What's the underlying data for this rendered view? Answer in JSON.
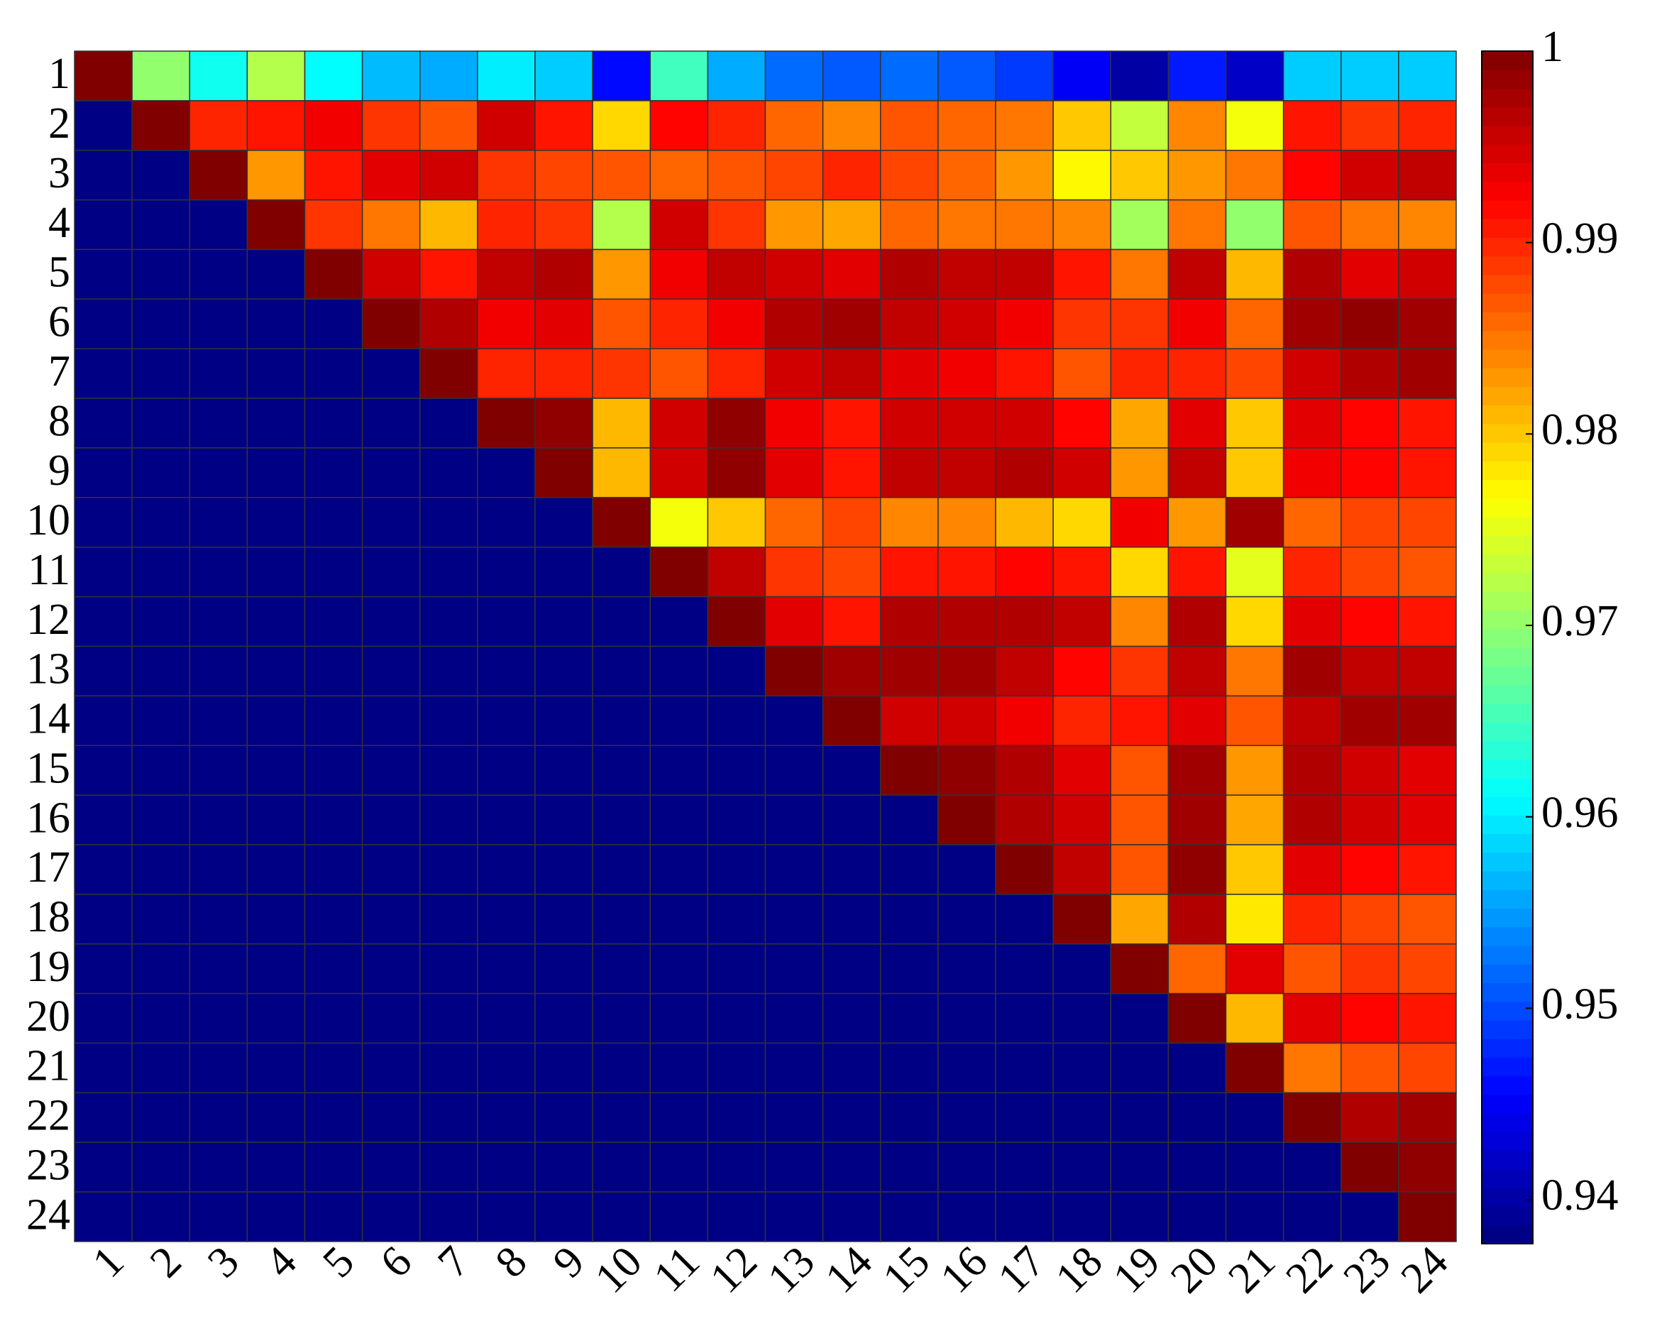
{
  "chart_data": {
    "type": "heatmap",
    "colormap": "jet",
    "xcategories": [
      "1",
      "2",
      "3",
      "4",
      "5",
      "6",
      "7",
      "8",
      "9",
      "10",
      "11",
      "12",
      "13",
      "14",
      "15",
      "16",
      "17",
      "18",
      "19",
      "20",
      "21",
      "22",
      "23",
      "24"
    ],
    "ycategories": [
      "1",
      "2",
      "3",
      "4",
      "5",
      "6",
      "7",
      "8",
      "9",
      "10",
      "11",
      "12",
      "13",
      "14",
      "15",
      "16",
      "17",
      "18",
      "19",
      "20",
      "21",
      "22",
      "23",
      "24"
    ],
    "values": [
      [
        1,
        0.97,
        0.962,
        0.972,
        0.961,
        0.957,
        0.956,
        0.96,
        0.958,
        0.946,
        0.965,
        0.956,
        0.952,
        0.951,
        0.952,
        0.951,
        0.949,
        0.945,
        0.94,
        0.947,
        0.942,
        0.958,
        0.958,
        0.958
      ],
      [
        0.938,
        1,
        0.99,
        0.991,
        0.993,
        0.989,
        0.987,
        0.995,
        0.991,
        0.979,
        0.992,
        0.99,
        0.986,
        0.984,
        0.987,
        0.986,
        0.985,
        0.98,
        0.973,
        0.984,
        0.976,
        0.991,
        0.989,
        0.99
      ],
      [
        0.938,
        0.938,
        1,
        0.983,
        0.991,
        0.994,
        0.995,
        0.989,
        0.988,
        0.987,
        0.986,
        0.987,
        0.988,
        0.99,
        0.988,
        0.986,
        0.983,
        0.977,
        0.98,
        0.983,
        0.985,
        0.992,
        0.995,
        0.996
      ],
      [
        0.938,
        0.938,
        0.938,
        1,
        0.989,
        0.985,
        0.981,
        0.99,
        0.989,
        0.972,
        0.995,
        0.989,
        0.983,
        0.982,
        0.986,
        0.985,
        0.985,
        0.984,
        0.971,
        0.985,
        0.97,
        0.987,
        0.985,
        0.984
      ],
      [
        0.938,
        0.938,
        0.938,
        0.938,
        1,
        0.995,
        0.991,
        0.996,
        0.997,
        0.983,
        0.993,
        0.996,
        0.995,
        0.994,
        0.997,
        0.996,
        0.996,
        0.991,
        0.985,
        0.996,
        0.981,
        0.997,
        0.994,
        0.995
      ],
      [
        0.938,
        0.938,
        0.938,
        0.938,
        0.938,
        1,
        0.997,
        0.993,
        0.994,
        0.987,
        0.99,
        0.993,
        0.997,
        0.998,
        0.996,
        0.995,
        0.993,
        0.989,
        0.989,
        0.993,
        0.986,
        0.998,
        0.999,
        0.998
      ],
      [
        0.938,
        0.938,
        0.938,
        0.938,
        0.938,
        0.938,
        1,
        0.99,
        0.99,
        0.989,
        0.987,
        0.99,
        0.995,
        0.996,
        0.994,
        0.993,
        0.991,
        0.987,
        0.99,
        0.99,
        0.988,
        0.995,
        0.997,
        0.998
      ],
      [
        0.938,
        0.938,
        0.938,
        0.938,
        0.938,
        0.938,
        0.938,
        1,
        0.999,
        0.981,
        0.995,
        0.999,
        0.993,
        0.991,
        0.995,
        0.995,
        0.995,
        0.992,
        0.982,
        0.994,
        0.98,
        0.994,
        0.992,
        0.991
      ],
      [
        0.938,
        0.938,
        0.938,
        0.938,
        0.938,
        0.938,
        0.938,
        0.938,
        1,
        0.981,
        0.995,
        0.999,
        0.994,
        0.991,
        0.996,
        0.996,
        0.997,
        0.995,
        0.983,
        0.996,
        0.98,
        0.993,
        0.992,
        0.991
      ],
      [
        0.938,
        0.938,
        0.938,
        0.938,
        0.938,
        0.938,
        0.938,
        0.938,
        0.938,
        1,
        0.976,
        0.98,
        0.986,
        0.988,
        0.984,
        0.984,
        0.981,
        0.979,
        0.993,
        0.983,
        0.998,
        0.986,
        0.988,
        0.988
      ],
      [
        0.938,
        0.938,
        0.938,
        0.938,
        0.938,
        0.938,
        0.938,
        0.938,
        0.938,
        0.938,
        1,
        0.996,
        0.989,
        0.988,
        0.991,
        0.991,
        0.992,
        0.991,
        0.979,
        0.991,
        0.975,
        0.99,
        0.988,
        0.987
      ],
      [
        0.938,
        0.938,
        0.938,
        0.938,
        0.938,
        0.938,
        0.938,
        0.938,
        0.938,
        0.938,
        0.938,
        1,
        0.994,
        0.991,
        0.997,
        0.997,
        0.997,
        0.996,
        0.984,
        0.997,
        0.979,
        0.994,
        0.992,
        0.991
      ],
      [
        0.938,
        0.938,
        0.938,
        0.938,
        0.938,
        0.938,
        0.938,
        0.938,
        0.938,
        0.938,
        0.938,
        0.938,
        1,
        0.998,
        0.998,
        0.998,
        0.996,
        0.992,
        0.989,
        0.996,
        0.985,
        0.998,
        0.996,
        0.996
      ],
      [
        0.938,
        0.938,
        0.938,
        0.938,
        0.938,
        0.938,
        0.938,
        0.938,
        0.938,
        0.938,
        0.938,
        0.938,
        0.938,
        1,
        0.995,
        0.995,
        0.993,
        0.99,
        0.991,
        0.994,
        0.987,
        0.996,
        0.998,
        0.998
      ],
      [
        0.938,
        0.938,
        0.938,
        0.938,
        0.938,
        0.938,
        0.938,
        0.938,
        0.938,
        0.938,
        0.938,
        0.938,
        0.938,
        0.938,
        1,
        0.999,
        0.997,
        0.994,
        0.987,
        0.998,
        0.983,
        0.997,
        0.995,
        0.994
      ],
      [
        0.938,
        0.938,
        0.938,
        0.938,
        0.938,
        0.938,
        0.938,
        0.938,
        0.938,
        0.938,
        0.938,
        0.938,
        0.938,
        0.938,
        0.938,
        1,
        0.997,
        0.995,
        0.987,
        0.998,
        0.982,
        0.997,
        0.995,
        0.994
      ],
      [
        0.938,
        0.938,
        0.938,
        0.938,
        0.938,
        0.938,
        0.938,
        0.938,
        0.938,
        0.938,
        0.938,
        0.938,
        0.938,
        0.938,
        0.938,
        0.938,
        1,
        0.996,
        0.987,
        0.999,
        0.98,
        0.994,
        0.992,
        0.991
      ],
      [
        0.938,
        0.938,
        0.938,
        0.938,
        0.938,
        0.938,
        0.938,
        0.938,
        0.938,
        0.938,
        0.938,
        0.938,
        0.938,
        0.938,
        0.938,
        0.938,
        0.938,
        1,
        0.982,
        0.997,
        0.978,
        0.99,
        0.988,
        0.987
      ],
      [
        0.938,
        0.938,
        0.938,
        0.938,
        0.938,
        0.938,
        0.938,
        0.938,
        0.938,
        0.938,
        0.938,
        0.938,
        0.938,
        0.938,
        0.938,
        0.938,
        0.938,
        0.938,
        1,
        0.986,
        0.994,
        0.987,
        0.989,
        0.988
      ],
      [
        0.938,
        0.938,
        0.938,
        0.938,
        0.938,
        0.938,
        0.938,
        0.938,
        0.938,
        0.938,
        0.938,
        0.938,
        0.938,
        0.938,
        0.938,
        0.938,
        0.938,
        0.938,
        0.938,
        1,
        0.981,
        0.994,
        0.992,
        0.991
      ],
      [
        0.938,
        0.938,
        0.938,
        0.938,
        0.938,
        0.938,
        0.938,
        0.938,
        0.938,
        0.938,
        0.938,
        0.938,
        0.938,
        0.938,
        0.938,
        0.938,
        0.938,
        0.938,
        0.938,
        0.938,
        1,
        0.985,
        0.987,
        0.988
      ],
      [
        0.938,
        0.938,
        0.938,
        0.938,
        0.938,
        0.938,
        0.938,
        0.938,
        0.938,
        0.938,
        0.938,
        0.938,
        0.938,
        0.938,
        0.938,
        0.938,
        0.938,
        0.938,
        0.938,
        0.938,
        0.938,
        1,
        0.997,
        0.998
      ],
      [
        0.938,
        0.938,
        0.938,
        0.938,
        0.938,
        0.938,
        0.938,
        0.938,
        0.938,
        0.938,
        0.938,
        0.938,
        0.938,
        0.938,
        0.938,
        0.938,
        0.938,
        0.938,
        0.938,
        0.938,
        0.938,
        0.938,
        1,
        0.999
      ],
      [
        0.938,
        0.938,
        0.938,
        0.938,
        0.938,
        0.938,
        0.938,
        0.938,
        0.938,
        0.938,
        0.938,
        0.938,
        0.938,
        0.938,
        0.938,
        0.938,
        0.938,
        0.938,
        0.938,
        0.938,
        0.938,
        0.938,
        0.938,
        1
      ]
    ],
    "clim": [
      0.9377,
      1
    ],
    "cticks": [
      0.94,
      0.95,
      0.96,
      0.97,
      0.98,
      0.99,
      1
    ]
  }
}
